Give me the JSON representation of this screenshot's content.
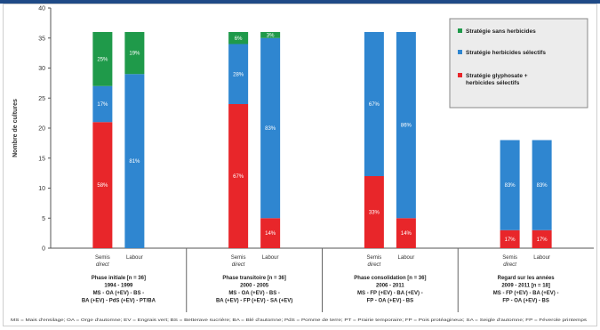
{
  "chart_data": {
    "type": "bar",
    "stacked": true,
    "ylabel": "Nombre de cultures",
    "ylim": [
      0,
      40
    ],
    "yticks": [
      0,
      5,
      10,
      15,
      20,
      25,
      30,
      35,
      40
    ],
    "grid": false,
    "legend_position": "top-right",
    "series_colors": {
      "glyphosate": "#e8262a",
      "selectifs": "#2f86d0",
      "sans": "#1f9a4a"
    },
    "legend": [
      {
        "key": "sans",
        "label": "Stratégie sans herbicides"
      },
      {
        "key": "selectifs",
        "label": "Stratégie herbicides sélectifs"
      },
      {
        "key": "glyphosate",
        "label": "Stratégie glyphosate + herbicides sélectifs"
      }
    ],
    "groups": [
      {
        "title_lines": [
          "Phase initiale [n = 36]",
          "1994 - 1999",
          "MS - OA (+EV) - BS -",
          "BA (+EV) - PdS (+EV) - PT/BA"
        ],
        "bars": [
          {
            "label": "Semis direct",
            "segments": [
              {
                "key": "glyphosate",
                "value": 21,
                "pct": "58%"
              },
              {
                "key": "selectifs",
                "value": 6,
                "pct": "17%"
              },
              {
                "key": "sans",
                "value": 9,
                "pct": "25%"
              }
            ]
          },
          {
            "label": "Labour",
            "segments": [
              {
                "key": "selectifs",
                "value": 29,
                "pct": "81%"
              },
              {
                "key": "sans",
                "value": 7,
                "pct": "19%"
              }
            ]
          }
        ]
      },
      {
        "title_lines": [
          "Phase transitoire [n = 36]",
          "2000 - 2005",
          "MS - OA (+EV) - BS -",
          "BA (+EV) - FP (+EV) - SA (+EV)"
        ],
        "bars": [
          {
            "label": "Semis direct",
            "segments": [
              {
                "key": "glyphosate",
                "value": 24,
                "pct": "67%"
              },
              {
                "key": "selectifs",
                "value": 10,
                "pct": "28%"
              },
              {
                "key": "sans",
                "value": 2,
                "pct": "6%"
              }
            ]
          },
          {
            "label": "Labour",
            "segments": [
              {
                "key": "glyphosate",
                "value": 5,
                "pct": "14%"
              },
              {
                "key": "selectifs",
                "value": 30,
                "pct": "83%"
              },
              {
                "key": "sans",
                "value": 1,
                "pct": "3%"
              }
            ]
          }
        ]
      },
      {
        "title_lines": [
          "Phase consolidation [n = 36]",
          "2006 - 2011",
          "MS - FP (+EV) - BA (+EV) -",
          "FP - OA (+EV) - BS"
        ],
        "bars": [
          {
            "label": "Semis direct",
            "segments": [
              {
                "key": "glyphosate",
                "value": 12,
                "pct": "33%"
              },
              {
                "key": "selectifs",
                "value": 24,
                "pct": "67%"
              }
            ]
          },
          {
            "label": "Labour",
            "segments": [
              {
                "key": "glyphosate",
                "value": 5,
                "pct": "14%"
              },
              {
                "key": "selectifs",
                "value": 31,
                "pct": "86%"
              }
            ]
          }
        ]
      },
      {
        "title_lines": [
          "Regard sur les années",
          "2009 - 2011 [n = 18]",
          "MS - FP (+EV) - BA (+EV) -",
          "FP - OA (+EV) - BS"
        ],
        "bars": [
          {
            "label": "Semis direct",
            "segments": [
              {
                "key": "glyphosate",
                "value": 3,
                "pct": "17%"
              },
              {
                "key": "selectifs",
                "value": 15,
                "pct": "83%"
              }
            ]
          },
          {
            "label": "Labour",
            "segments": [
              {
                "key": "glyphosate",
                "value": 3,
                "pct": "17%"
              },
              {
                "key": "selectifs",
                "value": 15,
                "pct": "83%"
              }
            ]
          }
        ]
      }
    ],
    "footnote": "MS = Mais d'ensilage; OA = Orge d'automne; EV = Engrais vert; BS = Betterave sucrière; BA = Blé d'automne; PdS = Pomme de terre; PT = Prairie temporaire; FP = Pois protéagineux; SA = Seigle d'automne; FP = Féverole printemps"
  }
}
